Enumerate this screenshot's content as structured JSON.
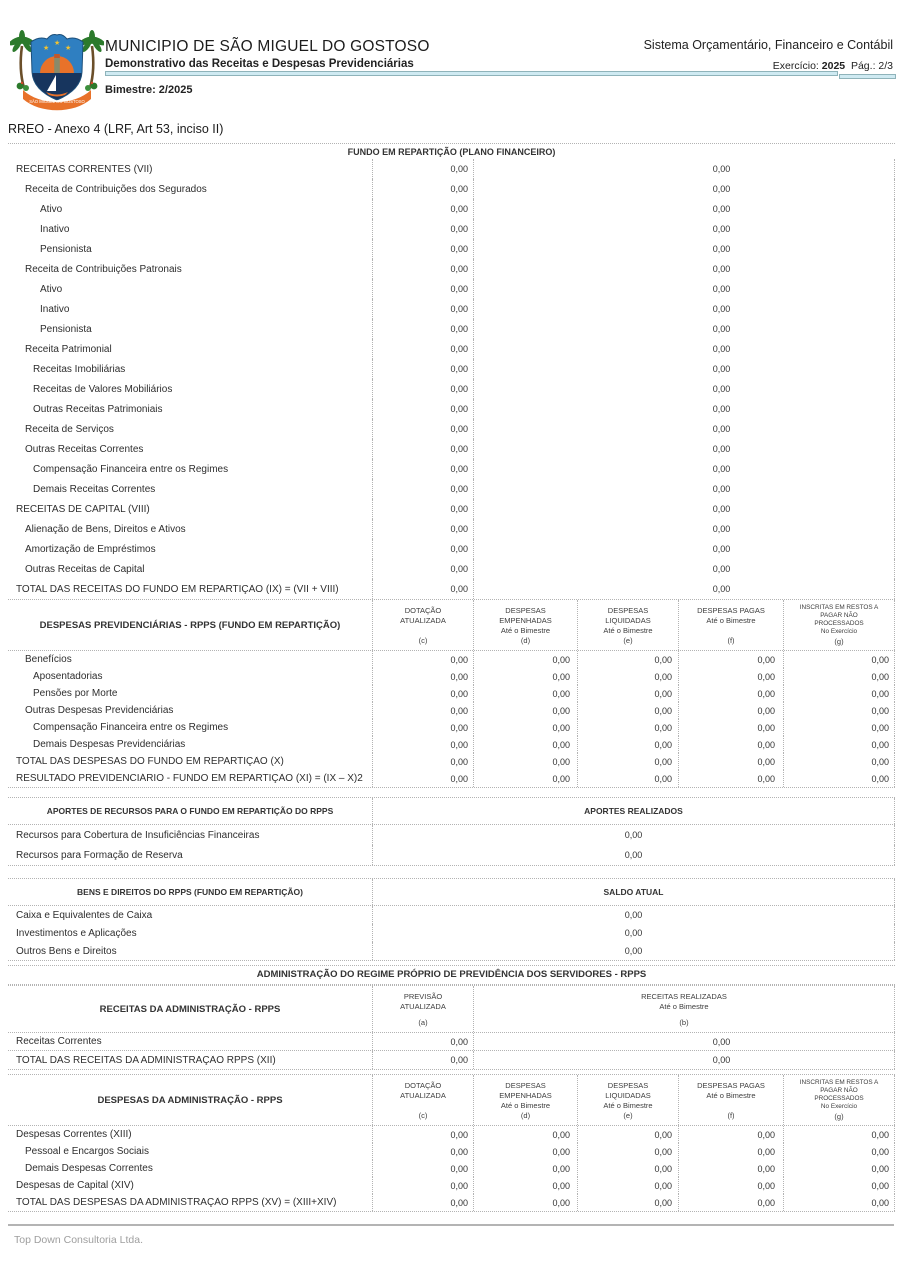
{
  "colors": {
    "dotted_line": "#b3b3b3",
    "accent_bar_fill": "#cfeaf2",
    "accent_bar_border": "#8fb3ba",
    "text_primary": "#333333",
    "muted_footer": "#9e9e9e",
    "logo_blue": "#2f7fc1",
    "logo_navy": "#17355e",
    "logo_orange": "#e8722a",
    "logo_green": "#2c7a2c",
    "logo_gold": "#f2c230"
  },
  "header": {
    "municipality": "MUNICIPIO DE SÃO MIGUEL DO GOSTOSO",
    "report_title": "Demonstrativo das Receitas e Despesas Previdenciárias",
    "bimester_label": "Bimestre: 2/2025",
    "system_name": "Sistema Orçamentário, Financeiro e Contábil",
    "exercise_label": "Exercício:",
    "exercise_value": "2025",
    "page_label": "Pág.: 2/3",
    "logo_banner_text": "SÃO MIGUEL DO GOSTOSO"
  },
  "report_subtitle": "RREO - Anexo 4 (LRF, Art 53, inciso II)",
  "sections": {
    "fundo_title": "FUNDO EM REPARTIÇÃO (PLANO FINANCEIRO)",
    "fundo_receitas": {
      "rows": [
        {
          "label": "RECEITAS CORRENTES (VII)",
          "indent": 0,
          "v1": "0,00",
          "v2": "0,00"
        },
        {
          "label": "Receita de Contribuições dos Segurados",
          "indent": 1,
          "v1": "0,00",
          "v2": "0,00"
        },
        {
          "label": "Ativo",
          "indent": 3,
          "v1": "0,00",
          "v2": "0,00"
        },
        {
          "label": "Inativo",
          "indent": 3,
          "v1": "0,00",
          "v2": "0,00"
        },
        {
          "label": "Pensionista",
          "indent": 3,
          "v1": "0,00",
          "v2": "0,00"
        },
        {
          "label": "Receita de Contribuições Patronais",
          "indent": 1,
          "v1": "0,00",
          "v2": "0,00"
        },
        {
          "label": "Ativo",
          "indent": 3,
          "v1": "0,00",
          "v2": "0,00"
        },
        {
          "label": "Inativo",
          "indent": 3,
          "v1": "0,00",
          "v2": "0,00"
        },
        {
          "label": "Pensionista",
          "indent": 3,
          "v1": "0,00",
          "v2": "0,00"
        },
        {
          "label": "Receita Patrimonial",
          "indent": 1,
          "v1": "0,00",
          "v2": "0,00"
        },
        {
          "label": "Receitas Imobiliárias",
          "indent": 2,
          "v1": "0,00",
          "v2": "0,00"
        },
        {
          "label": "Receitas de Valores Mobiliários",
          "indent": 2,
          "v1": "0,00",
          "v2": "0,00"
        },
        {
          "label": "Outras Receitas Patrimoniais",
          "indent": 2,
          "v1": "0,00",
          "v2": "0,00"
        },
        {
          "label": "Receita de Serviços",
          "indent": 1,
          "v1": "0,00",
          "v2": "0,00"
        },
        {
          "label": "Outras Receitas Correntes",
          "indent": 1,
          "v1": "0,00",
          "v2": "0,00"
        },
        {
          "label": "Compensação Financeira entre os Regimes",
          "indent": 2,
          "v1": "0,00",
          "v2": "0,00"
        },
        {
          "label": "Demais Receitas Correntes",
          "indent": 2,
          "v1": "0,00",
          "v2": "0,00"
        },
        {
          "label": "RECEITAS DE CAPITAL (VIII)",
          "indent": 0,
          "v1": "0,00",
          "v2": "0,00"
        },
        {
          "label": "Alienação de Bens, Direitos e Ativos",
          "indent": 1,
          "v1": "0,00",
          "v2": "0,00"
        },
        {
          "label": "Amortização de Empréstimos",
          "indent": 1,
          "v1": "0,00",
          "v2": "0,00"
        },
        {
          "label": "Outras Receitas de Capital",
          "indent": 1,
          "v1": "0,00",
          "v2": "0,00"
        },
        {
          "label": "TOTAL DAS RECEITAS DO FUNDO EM REPARTIÇÃO (IX) = (VII + VIII)",
          "indent": 0,
          "v1": "0,00",
          "v2": "0,00"
        }
      ]
    },
    "fundo_despesas": {
      "title": "DESPESAS PREVIDENCIÁRIAS - RPPS (FUNDO EM REPARTIÇÃO)",
      "col_headers": [
        {
          "lines": [
            "DOTAÇÃO",
            "ATUALIZADA"
          ],
          "ref": "(c)"
        },
        {
          "lines": [
            "DESPESAS",
            "EMPENHADAS",
            "Até o Bimestre"
          ],
          "ref": "(d)"
        },
        {
          "lines": [
            "DESPESAS",
            "LIQUIDADAS",
            "Até o Bimestre"
          ],
          "ref": "(e)"
        },
        {
          "lines": [
            "DESPESAS PAGAS",
            "Até o Bimestre"
          ],
          "ref": "(f)"
        },
        {
          "lines": [
            "INSCRITAS EM RESTOS A",
            "PAGAR NÃO",
            "PROCESSADOS",
            "No Exercício"
          ],
          "ref": "(g)",
          "small": true
        }
      ],
      "rows": [
        {
          "label": "Benefícios",
          "indent": 1,
          "values": [
            "0,00",
            "0,00",
            "0,00",
            "0,00",
            "0,00"
          ]
        },
        {
          "label": "Aposentadorias",
          "indent": 2,
          "values": [
            "0,00",
            "0,00",
            "0,00",
            "0,00",
            "0,00"
          ]
        },
        {
          "label": "Pensões por Morte",
          "indent": 2,
          "values": [
            "0,00",
            "0,00",
            "0,00",
            "0,00",
            "0,00"
          ]
        },
        {
          "label": "Outras Despesas Previdenciárias",
          "indent": 1,
          "values": [
            "0,00",
            "0,00",
            "0,00",
            "0,00",
            "0,00"
          ]
        },
        {
          "label": "Compensação Financeira entre os Regimes",
          "indent": 2,
          "values": [
            "0,00",
            "0,00",
            "0,00",
            "0,00",
            "0,00"
          ]
        },
        {
          "label": "Demais Despesas Previdenciárias",
          "indent": 2,
          "values": [
            "0,00",
            "0,00",
            "0,00",
            "0,00",
            "0,00"
          ]
        },
        {
          "label": "TOTAL DAS DESPESAS DO FUNDO EM REPARTIÇÃO (X)",
          "indent": 0,
          "values": [
            "0,00",
            "0,00",
            "0,00",
            "0,00",
            "0,00"
          ]
        },
        {
          "label": "RESULTADO PREVIDENCIÁRIO - FUNDO EM REPARTIÇÃO (XI) = (IX – X)2",
          "indent": 0,
          "values": [
            "0,00",
            "0,00",
            "0,00",
            "0,00",
            "0,00"
          ]
        }
      ]
    },
    "aportes": {
      "title": "APORTES DE RECURSOS PARA O FUNDO EM REPARTIÇÃO DO RPPS",
      "value_header": "APORTES REALIZADOS",
      "rows": [
        {
          "label": "Recursos para Cobertura de Insuficiências Financeiras",
          "value": "0,00"
        },
        {
          "label": "Recursos para Formação de Reserva",
          "value": "0,00"
        }
      ]
    },
    "bens": {
      "title": "BENS E DIREITOS DO RPPS (FUNDO EM REPARTIÇÃO)",
      "value_header": "SALDO ATUAL",
      "rows": [
        {
          "label": "Caixa e Equivalentes de Caixa",
          "value": "0,00"
        },
        {
          "label": "Investimentos e Aplicações",
          "value": "0,00"
        },
        {
          "label": "Outros Bens e Direitos",
          "value": "0,00"
        }
      ]
    },
    "admin_banner": "ADMINISTRAÇÃO DO REGIME PRÓPRIO DE PREVIDÊNCIA DOS SERVIDORES - RPPS",
    "admin_receitas": {
      "title": "RECEITAS DA ADMINISTRAÇÃO - RPPS",
      "col_headers": [
        {
          "lines": [
            "PREVISÃO",
            "ATUALIZADA"
          ],
          "ref": "(a)"
        },
        {
          "lines": [
            "RECEITAS REALIZADAS",
            "Até o Bimestre"
          ],
          "ref": "(b)"
        }
      ],
      "rows": [
        {
          "label": "Receitas Correntes",
          "indent": 0,
          "v1": "0,00",
          "v2": "0,00"
        },
        {
          "label": "TOTAL DAS RECEITAS DA ADMINISTRAÇÃO RPPS (XII)",
          "indent": 0,
          "v1": "0,00",
          "v2": "0,00"
        }
      ]
    },
    "admin_despesas": {
      "title": "DESPESAS DA ADMINISTRAÇÃO - RPPS",
      "col_headers": [
        {
          "lines": [
            "DOTAÇÃO",
            "ATUALIZADA"
          ],
          "ref": "(c)"
        },
        {
          "lines": [
            "DESPESAS",
            "EMPENHADAS",
            "Até o Bimestre"
          ],
          "ref": "(d)"
        },
        {
          "lines": [
            "DESPESAS",
            "LIQUIDADAS",
            "Até o Bimestre"
          ],
          "ref": "(e)"
        },
        {
          "lines": [
            "DESPESAS PAGAS",
            "Até o Bimestre"
          ],
          "ref": "(f)"
        },
        {
          "lines": [
            "INSCRITAS EM RESTOS A",
            "PAGAR NÃO",
            "PROCESSADOS",
            "No Exercício"
          ],
          "ref": "(g)",
          "small": true
        }
      ],
      "rows": [
        {
          "label": "Despesas Correntes (XIII)",
          "indent": 0,
          "values": [
            "0,00",
            "0,00",
            "0,00",
            "0,00",
            "0,00"
          ]
        },
        {
          "label": "Pessoal e Encargos Sociais",
          "indent": 1,
          "values": [
            "0,00",
            "0,00",
            "0,00",
            "0,00",
            "0,00"
          ]
        },
        {
          "label": "Demais Despesas Correntes",
          "indent": 1,
          "values": [
            "0,00",
            "0,00",
            "0,00",
            "0,00",
            "0,00"
          ]
        },
        {
          "label": "Despesas de Capital (XIV)",
          "indent": 0,
          "values": [
            "0,00",
            "0,00",
            "0,00",
            "0,00",
            "0,00"
          ]
        },
        {
          "label": "TOTAL DAS DESPESAS DA ADMINISTRAÇÃO RPPS (XV) = (XIII+XIV)",
          "indent": 0,
          "values": [
            "0,00",
            "0,00",
            "0,00",
            "0,00",
            "0,00"
          ]
        }
      ]
    }
  },
  "footer": {
    "company": "Top Down Consultoria Ltda."
  }
}
